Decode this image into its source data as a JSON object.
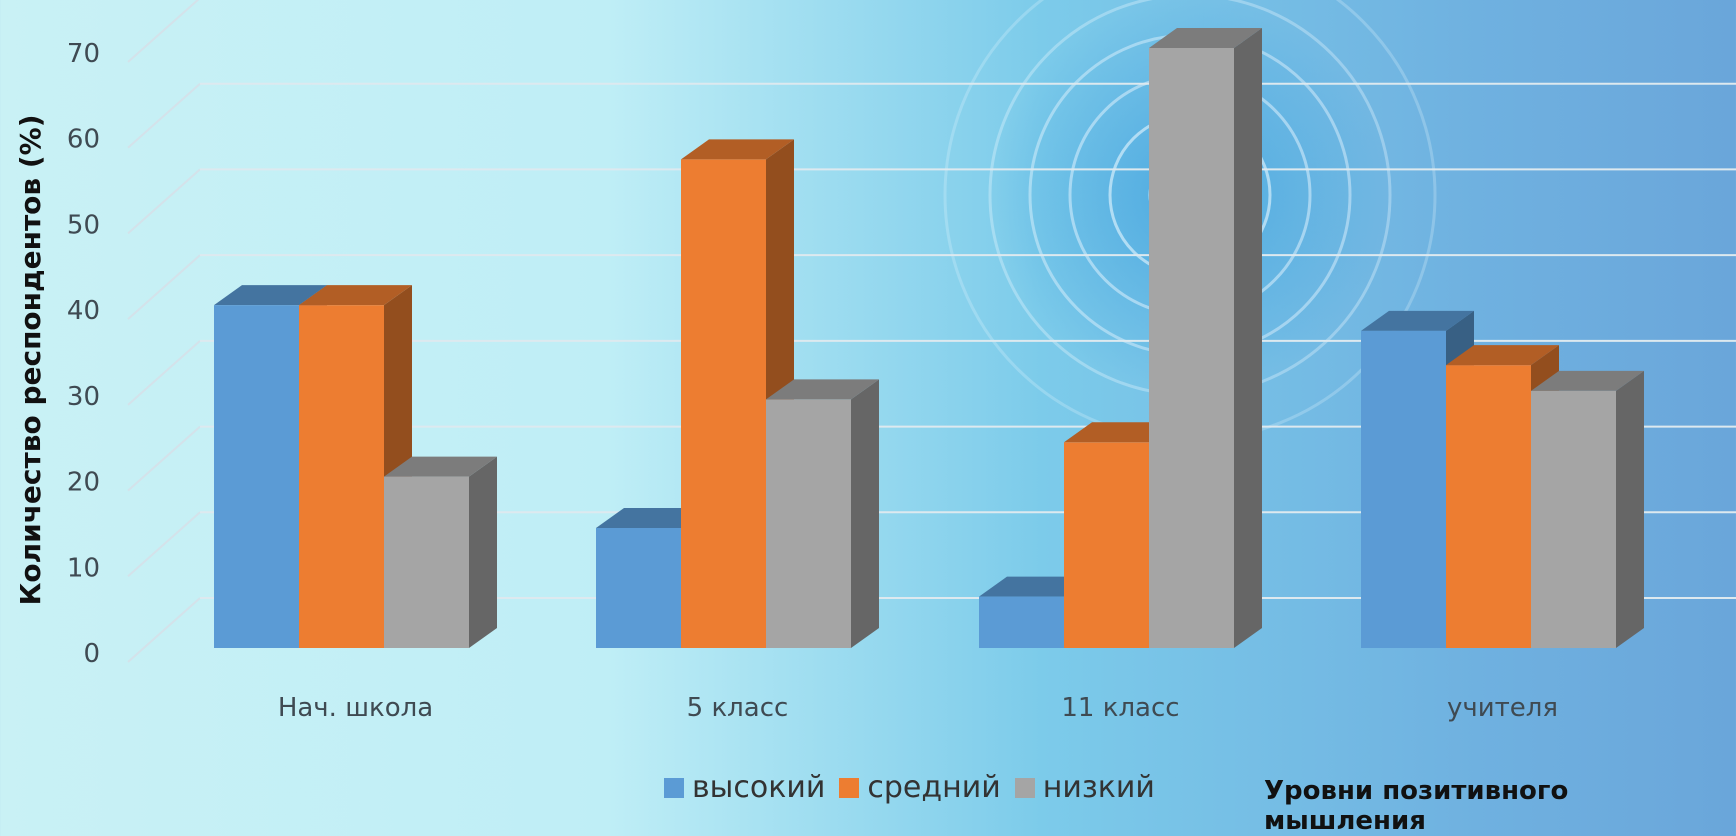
{
  "chart_data": {
    "type": "bar",
    "categories": [
      "Нач. школа",
      "5 класс",
      "11 класс",
      "учителя"
    ],
    "series": [
      {
        "name": "высокий",
        "values": [
          40,
          14,
          6,
          37
        ],
        "color": "#5b9bd5"
      },
      {
        "name": "средний",
        "values": [
          40,
          57,
          24,
          33
        ],
        "color": "#ed7d31"
      },
      {
        "name": "низкий",
        "values": [
          20,
          29,
          70,
          30
        ],
        "color": "#a5a5a5"
      }
    ],
    "ylabel": "Количество респондентов (%)",
    "xlabel": "Уровни позитивного мышления",
    "ylim": [
      0,
      70
    ],
    "yticks": [
      0,
      10,
      20,
      30,
      40,
      50,
      60,
      70
    ],
    "grid": true,
    "legend_position": "bottom",
    "style": "3d-clustered"
  }
}
